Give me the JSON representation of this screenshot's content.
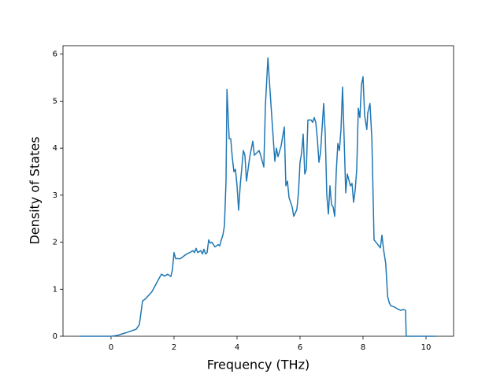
{
  "chart_data": {
    "type": "line",
    "x_label": "Frequency (THz)",
    "y_label": "Density of States",
    "xlim": [
      -1.525,
      10.875
    ],
    "ylim": [
      0,
      6.18
    ],
    "xticks": [
      0,
      2,
      4,
      6,
      8,
      10
    ],
    "yticks": [
      0,
      1,
      2,
      3,
      4,
      5,
      6
    ],
    "series": [
      {
        "color": "#1f77b4",
        "x": [
          -1.0,
          0,
          0.2,
          0.5,
          0.8,
          0.9,
          1.0,
          1.1,
          1.3,
          1.5,
          1.6,
          1.7,
          1.8,
          1.9,
          1.95,
          2.0,
          2.05,
          2.2,
          2.4,
          2.5,
          2.6,
          2.65,
          2.7,
          2.75,
          2.85,
          2.9,
          2.95,
          3.0,
          3.05,
          3.1,
          3.15,
          3.2,
          3.3,
          3.4,
          3.45,
          3.5,
          3.55,
          3.6,
          3.65,
          3.68,
          3.75,
          3.8,
          3.85,
          3.9,
          3.95,
          4.0,
          4.05,
          4.1,
          4.2,
          4.25,
          4.3,
          4.4,
          4.5,
          4.55,
          4.7,
          4.75,
          4.85,
          4.9,
          4.98,
          5.05,
          5.15,
          5.2,
          5.25,
          5.3,
          5.4,
          5.5,
          5.55,
          5.6,
          5.65,
          5.75,
          5.8,
          5.9,
          5.95,
          6.0,
          6.05,
          6.1,
          6.15,
          6.2,
          6.25,
          6.35,
          6.4,
          6.45,
          6.5,
          6.55,
          6.6,
          6.65,
          6.75,
          6.8,
          6.85,
          6.9,
          6.95,
          7.0,
          7.05,
          7.1,
          7.15,
          7.2,
          7.25,
          7.3,
          7.35,
          7.4,
          7.45,
          7.5,
          7.6,
          7.65,
          7.7,
          7.75,
          7.8,
          7.85,
          7.9,
          7.95,
          8.0,
          8.05,
          8.12,
          8.15,
          8.22,
          8.28,
          8.35,
          8.47,
          8.55,
          8.6,
          8.65,
          8.72,
          8.78,
          8.83,
          8.88,
          9.0,
          9.1,
          9.2,
          9.28,
          9.35,
          9.37,
          10.3
        ],
        "values": [
          0,
          0,
          0.02,
          0.08,
          0.15,
          0.25,
          0.75,
          0.8,
          0.95,
          1.2,
          1.32,
          1.28,
          1.32,
          1.27,
          1.42,
          1.78,
          1.65,
          1.65,
          1.75,
          1.78,
          1.82,
          1.78,
          1.87,
          1.78,
          1.82,
          1.75,
          1.85,
          1.75,
          1.78,
          2.05,
          1.98,
          2.0,
          1.9,
          1.95,
          1.92,
          2.05,
          2.15,
          2.35,
          3.3,
          5.25,
          4.2,
          4.2,
          3.8,
          3.5,
          3.55,
          3.2,
          2.68,
          3.2,
          3.95,
          3.85,
          3.3,
          3.8,
          4.15,
          3.85,
          3.95,
          3.85,
          3.6,
          4.9,
          5.92,
          5.2,
          4.2,
          3.72,
          4.0,
          3.82,
          4.05,
          4.45,
          3.2,
          3.3,
          2.95,
          2.75,
          2.55,
          2.7,
          3.05,
          3.7,
          3.9,
          4.3,
          3.45,
          3.55,
          4.6,
          4.6,
          4.55,
          4.65,
          4.55,
          4.2,
          3.7,
          3.9,
          4.95,
          4.3,
          3.0,
          2.6,
          3.2,
          2.8,
          2.75,
          2.55,
          3.5,
          4.1,
          3.95,
          4.4,
          5.3,
          4.2,
          3.05,
          3.45,
          3.2,
          3.25,
          2.85,
          3.1,
          3.55,
          4.85,
          4.65,
          5.35,
          5.52,
          4.7,
          4.4,
          4.75,
          4.95,
          4.2,
          2.05,
          1.95,
          1.88,
          2.15,
          1.85,
          1.55,
          0.85,
          0.72,
          0.65,
          0.62,
          0.58,
          0.55,
          0.57,
          0.55,
          0,
          0
        ]
      }
    ]
  }
}
